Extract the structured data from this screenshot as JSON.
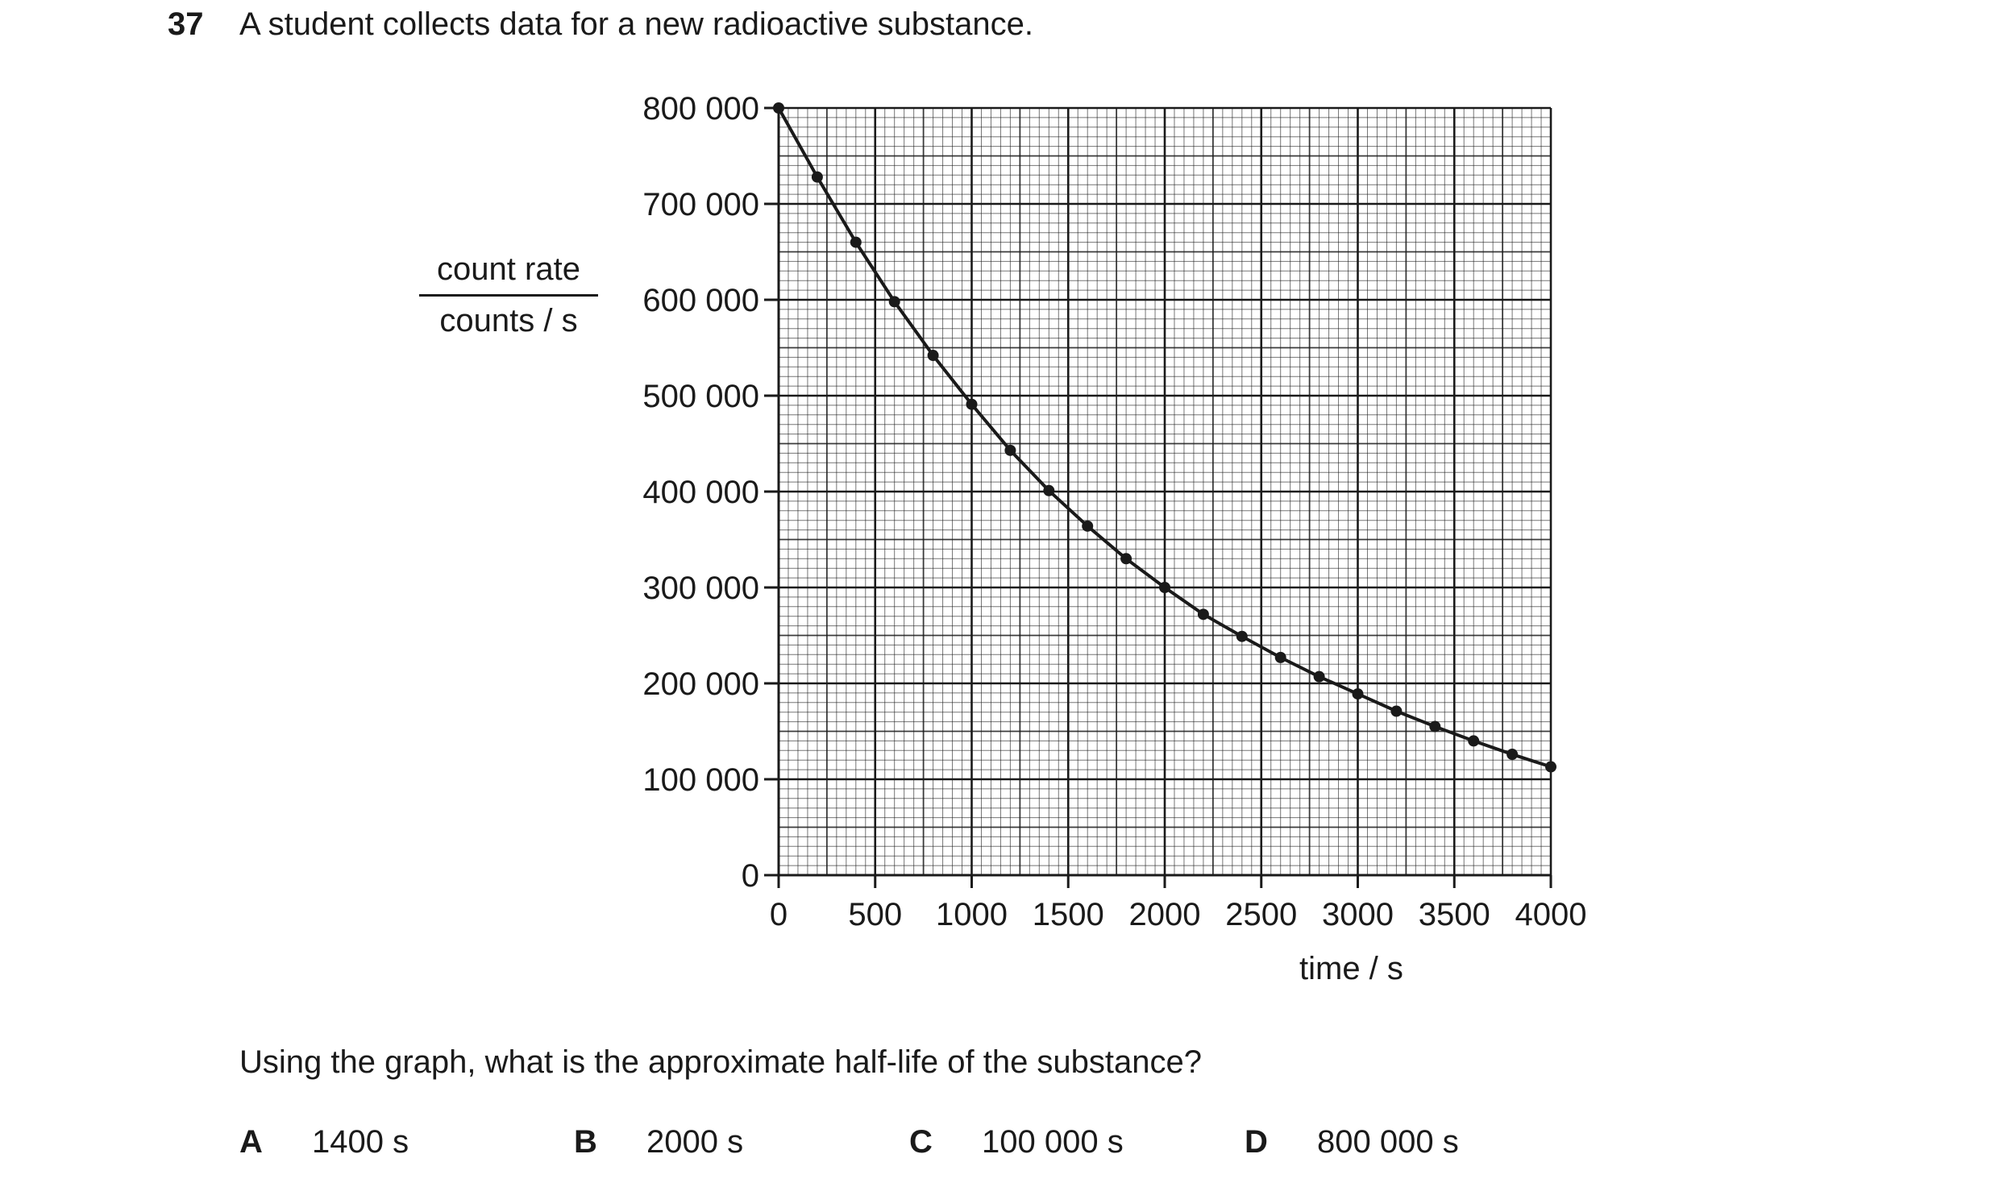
{
  "question": {
    "number": "37",
    "text": "A student collects data for a new radioactive substance.",
    "prompt": "Using the graph, what is the approximate half-life of the substance?",
    "options": [
      {
        "letter": "A",
        "value": "1400 s"
      },
      {
        "letter": "B",
        "value": "2000 s"
      },
      {
        "letter": "C",
        "value": "100 000 s"
      },
      {
        "letter": "D",
        "value": "800 000 s"
      }
    ]
  },
  "chart_data": {
    "type": "line",
    "title": "",
    "xlabel": "time / s",
    "ylabel_top": "count rate",
    "ylabel_bottom": "counts / s",
    "xlim": [
      0,
      4000
    ],
    "ylim": [
      0,
      800000
    ],
    "x_ticks": [
      "0",
      "500",
      "1000",
      "1500",
      "2000",
      "2500",
      "3000",
      "3500",
      "4000"
    ],
    "y_ticks": [
      "0",
      "100 000",
      "200 000",
      "300 000",
      "400 000",
      "500 000",
      "600 000",
      "700 000",
      "800 000"
    ],
    "grid": true,
    "markers": true,
    "series": [
      {
        "x": [
          0,
          200,
          400,
          600,
          800,
          1000,
          1200,
          1400,
          1600,
          1800,
          2000,
          2200,
          2400,
          2600,
          2800,
          3000,
          3200,
          3400,
          3600,
          3800,
          4000
        ],
        "y": [
          800000,
          728000,
          660000,
          598000,
          542000,
          491000,
          443000,
          401000,
          364000,
          330000,
          300000,
          272000,
          249000,
          227000,
          207000,
          189000,
          171000,
          155000,
          140000,
          126000,
          113000
        ]
      }
    ]
  }
}
